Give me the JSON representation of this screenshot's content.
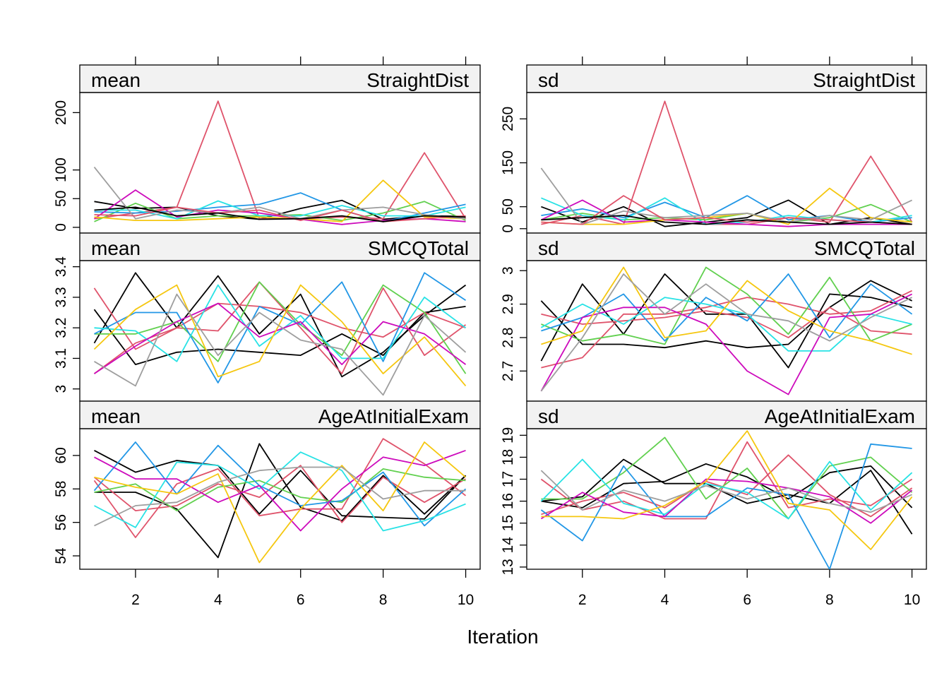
{
  "chart_data": {
    "type": "line",
    "xlabel": "Iteration",
    "x": [
      1,
      2,
      3,
      4,
      5,
      6,
      7,
      8,
      9,
      10
    ],
    "x_ticks": [
      2,
      4,
      6,
      8,
      10
    ],
    "grid": false,
    "series_colors": [
      "#000000",
      "#DF536B",
      "#61D04F",
      "#2297E6",
      "#28E2E5",
      "#CD0BBC",
      "#F5C710",
      "#9E9E9E"
    ],
    "panels": [
      {
        "id": "mean-straightdist",
        "stat": "mean",
        "variable": "StraightDist",
        "ylim": [
          -10,
          235
        ],
        "yticks": [
          0,
          50,
          100,
          200
        ],
        "series": [
          {
            "color": "#000000",
            "values": [
              45,
              33,
              35,
              20,
              14,
              33,
              47,
              14,
              20,
              19
            ]
          },
          {
            "color": "#DF536B",
            "values": [
              15,
              25,
              35,
              220,
              15,
              15,
              18,
              15,
              130,
              15
            ]
          },
          {
            "color": "#61D04F",
            "values": [
              10,
              42,
              15,
              20,
              20,
              22,
              12,
              25,
              45,
              12
            ]
          },
          {
            "color": "#2297E6",
            "values": [
              27,
              25,
              28,
              35,
              40,
              60,
              30,
              10,
              25,
              40
            ]
          },
          {
            "color": "#28E2E5",
            "values": [
              30,
              30,
              15,
              46,
              20,
              20,
              38,
              20,
              20,
              35
            ]
          },
          {
            "color": "#CD0BBC",
            "values": [
              15,
              65,
              18,
              30,
              25,
              14,
              5,
              12,
              15,
              10
            ]
          },
          {
            "color": "#F5C710",
            "values": [
              18,
              12,
              12,
              15,
              18,
              15,
              10,
              82,
              18,
              15
            ]
          },
          {
            "color": "#9E9E9E",
            "values": [
              105,
              15,
              30,
              25,
              35,
              15,
              30,
              35,
              22,
              15
            ]
          },
          {
            "color": "#DF536B",
            "values": [
              22,
              20,
              35,
              25,
              30,
              12,
              30,
              10,
              15,
              20
            ]
          },
          {
            "color": "#000000",
            "values": [
              30,
              35,
              20,
              25,
              14,
              15,
              20,
              10,
              20,
              18
            ]
          }
        ]
      },
      {
        "id": "sd-straightdist",
        "stat": "sd",
        "variable": "StraightDist",
        "ylim": [
          -10,
          310
        ],
        "yticks": [
          0,
          50,
          150,
          250
        ],
        "series": [
          {
            "color": "#000000",
            "values": [
              50,
              15,
              50,
              5,
              15,
              25,
              65,
              10,
              25,
              10
            ]
          },
          {
            "color": "#DF536B",
            "values": [
              10,
              30,
              10,
              290,
              10,
              10,
              25,
              15,
              165,
              15
            ]
          },
          {
            "color": "#61D04F",
            "values": [
              20,
              35,
              20,
              25,
              20,
              35,
              15,
              25,
              55,
              15
            ]
          },
          {
            "color": "#2297E6",
            "values": [
              30,
              45,
              25,
              60,
              25,
              75,
              20,
              30,
              15,
              25
            ]
          },
          {
            "color": "#28E2E5",
            "values": [
              70,
              30,
              20,
              70,
              10,
              15,
              30,
              20,
              15,
              30
            ]
          },
          {
            "color": "#CD0BBC",
            "values": [
              20,
              65,
              15,
              20,
              15,
              10,
              5,
              10,
              10,
              10
            ]
          },
          {
            "color": "#F5C710",
            "values": [
              15,
              10,
              10,
              20,
              25,
              35,
              10,
              92,
              25,
              15
            ]
          },
          {
            "color": "#9E9E9E",
            "values": [
              138,
              10,
              40,
              25,
              30,
              35,
              15,
              30,
              20,
              65
            ]
          },
          {
            "color": "#DF536B",
            "values": [
              15,
              10,
              75,
              20,
              25,
              15,
              25,
              20,
              15,
              10
            ]
          },
          {
            "color": "#000000",
            "values": [
              20,
              25,
              30,
              15,
              10,
              20,
              15,
              10,
              15,
              10
            ]
          }
        ]
      },
      {
        "id": "mean-smcqtotal",
        "stat": "mean",
        "variable": "SMCQTotal",
        "ylim": [
          2.96,
          3.42
        ],
        "yticks": [
          3.0,
          3.1,
          3.2,
          3.3,
          3.4
        ],
        "series": [
          {
            "color": "#000000",
            "values": [
              3.26,
              3.08,
              3.12,
              3.13,
              3.12,
              3.11,
              3.18,
              3.11,
              3.25,
              3.27
            ]
          },
          {
            "color": "#000000",
            "values": [
              3.15,
              3.38,
              3.2,
              3.37,
              3.18,
              3.31,
              3.04,
              3.12,
              3.24,
              3.34
            ]
          },
          {
            "color": "#DF536B",
            "values": [
              3.05,
              3.15,
              3.2,
              3.28,
              3.27,
              3.25,
              3.2,
              3.17,
              3.25,
              3.2
            ]
          },
          {
            "color": "#DF536B",
            "values": [
              3.33,
              3.13,
              3.2,
              3.19,
              3.35,
              3.2,
              3.05,
              3.33,
              3.11,
              3.21
            ]
          },
          {
            "color": "#61D04F",
            "values": [
              3.18,
              3.18,
              3.22,
              3.09,
              3.35,
              3.21,
              3.11,
              3.34,
              3.25,
              3.05
            ]
          },
          {
            "color": "#2297E6",
            "values": [
              3.18,
              3.25,
              3.25,
              3.02,
              3.27,
              3.21,
              3.35,
              3.09,
              3.38,
              3.29
            ]
          },
          {
            "color": "#28E2E5",
            "values": [
              3.2,
              3.19,
              3.09,
              3.34,
              3.14,
              3.24,
              3.1,
              3.1,
              3.3,
              3.2
            ]
          },
          {
            "color": "#CD0BBC",
            "values": [
              3.05,
              3.14,
              3.22,
              3.28,
              3.17,
              3.22,
              3.08,
              3.22,
              3.18,
              3.08
            ]
          },
          {
            "color": "#F5C710",
            "values": [
              3.13,
              3.26,
              3.34,
              3.04,
              3.09,
              3.34,
              3.22,
              3.05,
              3.17,
              3.01
            ]
          },
          {
            "color": "#9E9E9E",
            "values": [
              3.09,
              3.01,
              3.31,
              3.11,
              3.25,
              3.16,
              3.13,
              2.98,
              3.24,
              3.12
            ]
          }
        ]
      },
      {
        "id": "sd-smcqtotal",
        "stat": "sd",
        "variable": "SMCQTotal",
        "ylim": [
          2.61,
          3.03
        ],
        "yticks": [
          2.7,
          2.8,
          2.9,
          3.0
        ],
        "series": [
          {
            "color": "#000000",
            "values": [
              2.73,
              2.96,
              2.81,
              2.99,
              2.87,
              2.87,
              2.71,
              2.93,
              2.92,
              2.89
            ]
          },
          {
            "color": "#000000",
            "values": [
              2.91,
              2.78,
              2.78,
              2.77,
              2.79,
              2.77,
              2.78,
              2.89,
              2.97,
              2.91
            ]
          },
          {
            "color": "#DF536B",
            "values": [
              2.71,
              2.74,
              2.87,
              2.87,
              2.89,
              2.92,
              2.9,
              2.87,
              2.88,
              2.94
            ]
          },
          {
            "color": "#DF536B",
            "values": [
              2.87,
              2.84,
              2.85,
              2.86,
              2.88,
              2.86,
              2.8,
              2.89,
              2.82,
              2.81
            ]
          },
          {
            "color": "#61D04F",
            "values": [
              2.84,
              2.79,
              2.81,
              2.78,
              3.01,
              2.93,
              2.81,
              2.98,
              2.79,
              2.84
            ]
          },
          {
            "color": "#2297E6",
            "values": [
              2.82,
              2.86,
              2.93,
              2.79,
              2.92,
              2.85,
              2.99,
              2.8,
              2.96,
              2.87
            ]
          },
          {
            "color": "#28E2E5",
            "values": [
              2.83,
              2.9,
              2.84,
              2.92,
              2.9,
              2.87,
              2.76,
              2.76,
              2.87,
              2.84
            ]
          },
          {
            "color": "#CD0BBC",
            "values": [
              2.64,
              2.86,
              2.89,
              2.89,
              2.84,
              2.7,
              2.63,
              2.86,
              2.87,
              2.93
            ]
          },
          {
            "color": "#F5C710",
            "values": [
              2.78,
              2.82,
              3.01,
              2.8,
              2.82,
              2.97,
              2.88,
              2.82,
              2.79,
              2.75
            ]
          },
          {
            "color": "#9E9E9E",
            "values": [
              2.64,
              2.8,
              2.99,
              2.87,
              2.96,
              2.87,
              2.85,
              2.79,
              2.86,
              2.92
            ]
          }
        ]
      },
      {
        "id": "mean-ageatinitialexam",
        "stat": "mean",
        "variable": "AgeAtInitialExam",
        "ylim": [
          53.2,
          61.6
        ],
        "yticks": [
          54,
          56,
          58,
          60
        ],
        "series": [
          {
            "color": "#000000",
            "values": [
              60.3,
              59,
              59.7,
              59.4,
              56.5,
              59.1,
              56.4,
              56.3,
              56.2,
              58.8
            ]
          },
          {
            "color": "#000000",
            "values": [
              57.8,
              57.8,
              56.8,
              53.9,
              60.7,
              56.9,
              56.1,
              58.8,
              56.5,
              58.8
            ]
          },
          {
            "color": "#DF536B",
            "values": [
              58.5,
              55.1,
              58.3,
              59.2,
              56.4,
              56.8,
              56.8,
              61,
              59.5,
              57.6
            ]
          },
          {
            "color": "#DF536B",
            "values": [
              58.7,
              56.7,
              57,
              58.3,
              57.5,
              59.4,
              56,
              58.7,
              57.2,
              58.6
            ]
          },
          {
            "color": "#61D04F",
            "values": [
              57.8,
              58.3,
              56.7,
              58.1,
              58.5,
              57.5,
              57.2,
              59.2,
              58.7,
              58.5
            ]
          },
          {
            "color": "#2297E6",
            "values": [
              57.9,
              60.8,
              57.7,
              60.6,
              58.2,
              57,
              57.3,
              59,
              55.8,
              58
            ]
          },
          {
            "color": "#28E2E5",
            "values": [
              57,
              55.7,
              59.6,
              59.4,
              58,
              60.2,
              59.1,
              55.5,
              56.1,
              57.1
            ]
          },
          {
            "color": "#CD0BBC",
            "values": [
              59.9,
              58.6,
              58.6,
              57.2,
              58.2,
              55.5,
              58,
              59.9,
              59.4,
              60.3
            ]
          },
          {
            "color": "#F5C710",
            "values": [
              58.7,
              58.1,
              57.7,
              58.9,
              53.6,
              56.8,
              59.4,
              56.7,
              60.8,
              58.7
            ]
          },
          {
            "color": "#9E9E9E",
            "values": [
              55.8,
              57,
              57.2,
              58.4,
              59.1,
              59.3,
              59.3,
              57.4,
              57.9,
              57.9
            ]
          }
        ]
      },
      {
        "id": "sd-ageatinitialexam",
        "stat": "sd",
        "variable": "AgeAtInitialExam",
        "ylim": [
          12.9,
          19.3
        ],
        "yticks": [
          13,
          14,
          15,
          16,
          17,
          18,
          19
        ],
        "series": [
          {
            "color": "#000000",
            "values": [
              16,
              16.2,
              17.9,
              16.8,
              16.8,
              15.9,
              16.3,
              15.9,
              17.4,
              14.5
            ]
          },
          {
            "color": "#000000",
            "values": [
              16,
              15.7,
              16.8,
              16.9,
              17.7,
              17.1,
              16.1,
              17.3,
              17.6,
              15.7
            ]
          },
          {
            "color": "#DF536B",
            "values": [
              17,
              15.6,
              16,
              15.2,
              15.2,
              18.7,
              15.7,
              16.1,
              15.8,
              17
            ]
          },
          {
            "color": "#DF536B",
            "values": [
              15.4,
              16,
              16.4,
              15.7,
              16.9,
              16.3,
              18.1,
              16.3,
              15.3,
              16.6
            ]
          },
          {
            "color": "#61D04F",
            "values": [
              16.1,
              16.1,
              17.3,
              18.9,
              16.1,
              17.5,
              15.2,
              17.6,
              18,
              16.4
            ]
          },
          {
            "color": "#2297E6",
            "values": [
              15.6,
              14.2,
              17.6,
              15.3,
              15.3,
              16.6,
              16.3,
              12.9,
              18.6,
              18.4
            ]
          },
          {
            "color": "#28E2E5",
            "values": [
              16,
              17.9,
              15.9,
              15.4,
              16.8,
              16.4,
              15.2,
              17.8,
              15.6,
              17.3
            ]
          },
          {
            "color": "#CD0BBC",
            "values": [
              15.2,
              16.4,
              15.5,
              15.3,
              17,
              16.9,
              16.6,
              16.2,
              15,
              16.5
            ]
          },
          {
            "color": "#F5C710",
            "values": [
              15.3,
              15.3,
              15.2,
              15.8,
              16.9,
              19.2,
              15.9,
              15.6,
              13.8,
              16.2
            ]
          },
          {
            "color": "#9E9E9E",
            "values": [
              17.4,
              15.6,
              16.5,
              16,
              16.7,
              16.1,
              16.6,
              15.9,
              15.5,
              16.3
            ]
          }
        ]
      }
    ]
  }
}
